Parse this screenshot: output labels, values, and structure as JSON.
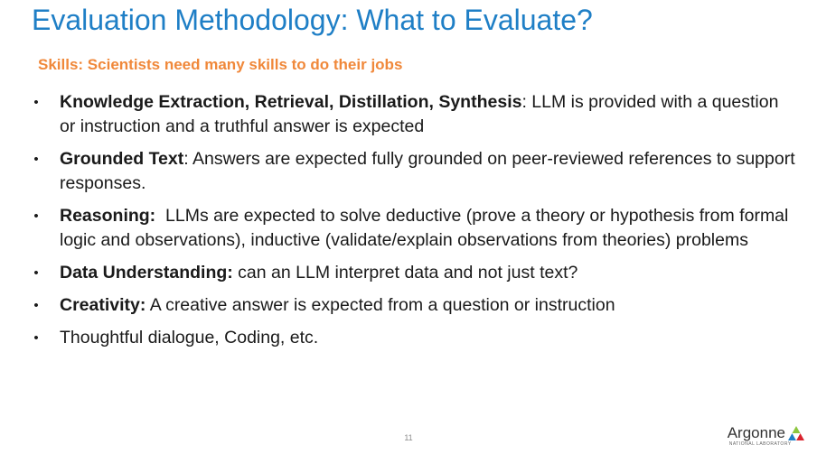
{
  "slide": {
    "title": "Evaluation Methodology: What to Evaluate?",
    "subtitle": "Skills: Scientists need many skills to do their jobs",
    "bullet_glyph": "•",
    "bullets": [
      {
        "term": "Knowledge Extraction, Retrieval, Distillation, Synthesis",
        "text": ": LLM is provided with a question or instruction and a truthful answer is expected"
      },
      {
        "term": "Grounded Text",
        "text": ": Answers are expected fully grounded on peer-reviewed references to support responses."
      },
      {
        "term": "Reasoning:",
        "text": "  LLMs are expected to solve deductive (prove a theory or hypothesis from formal logic and observations), inductive (validate/explain observations from theories) problems"
      },
      {
        "term": "Data Understanding:",
        "text": " can an LLM interpret data and not just text?"
      },
      {
        "term": "Creativity:",
        "text": " A creative answer is expected from a question or instruction"
      },
      {
        "term": "",
        "text": "Thoughtful dialogue, Coding, etc."
      }
    ],
    "page_number": "11"
  },
  "logo": {
    "name": "Argonne",
    "tagline": "NATIONAL LABORATORY",
    "colors": {
      "green": "#8cc63f",
      "blue": "#1f7fc6",
      "red": "#d9232e"
    }
  },
  "colors": {
    "title": "#1f7fc6",
    "subtitle": "#f0883a",
    "body_text": "#1a1a1a"
  }
}
